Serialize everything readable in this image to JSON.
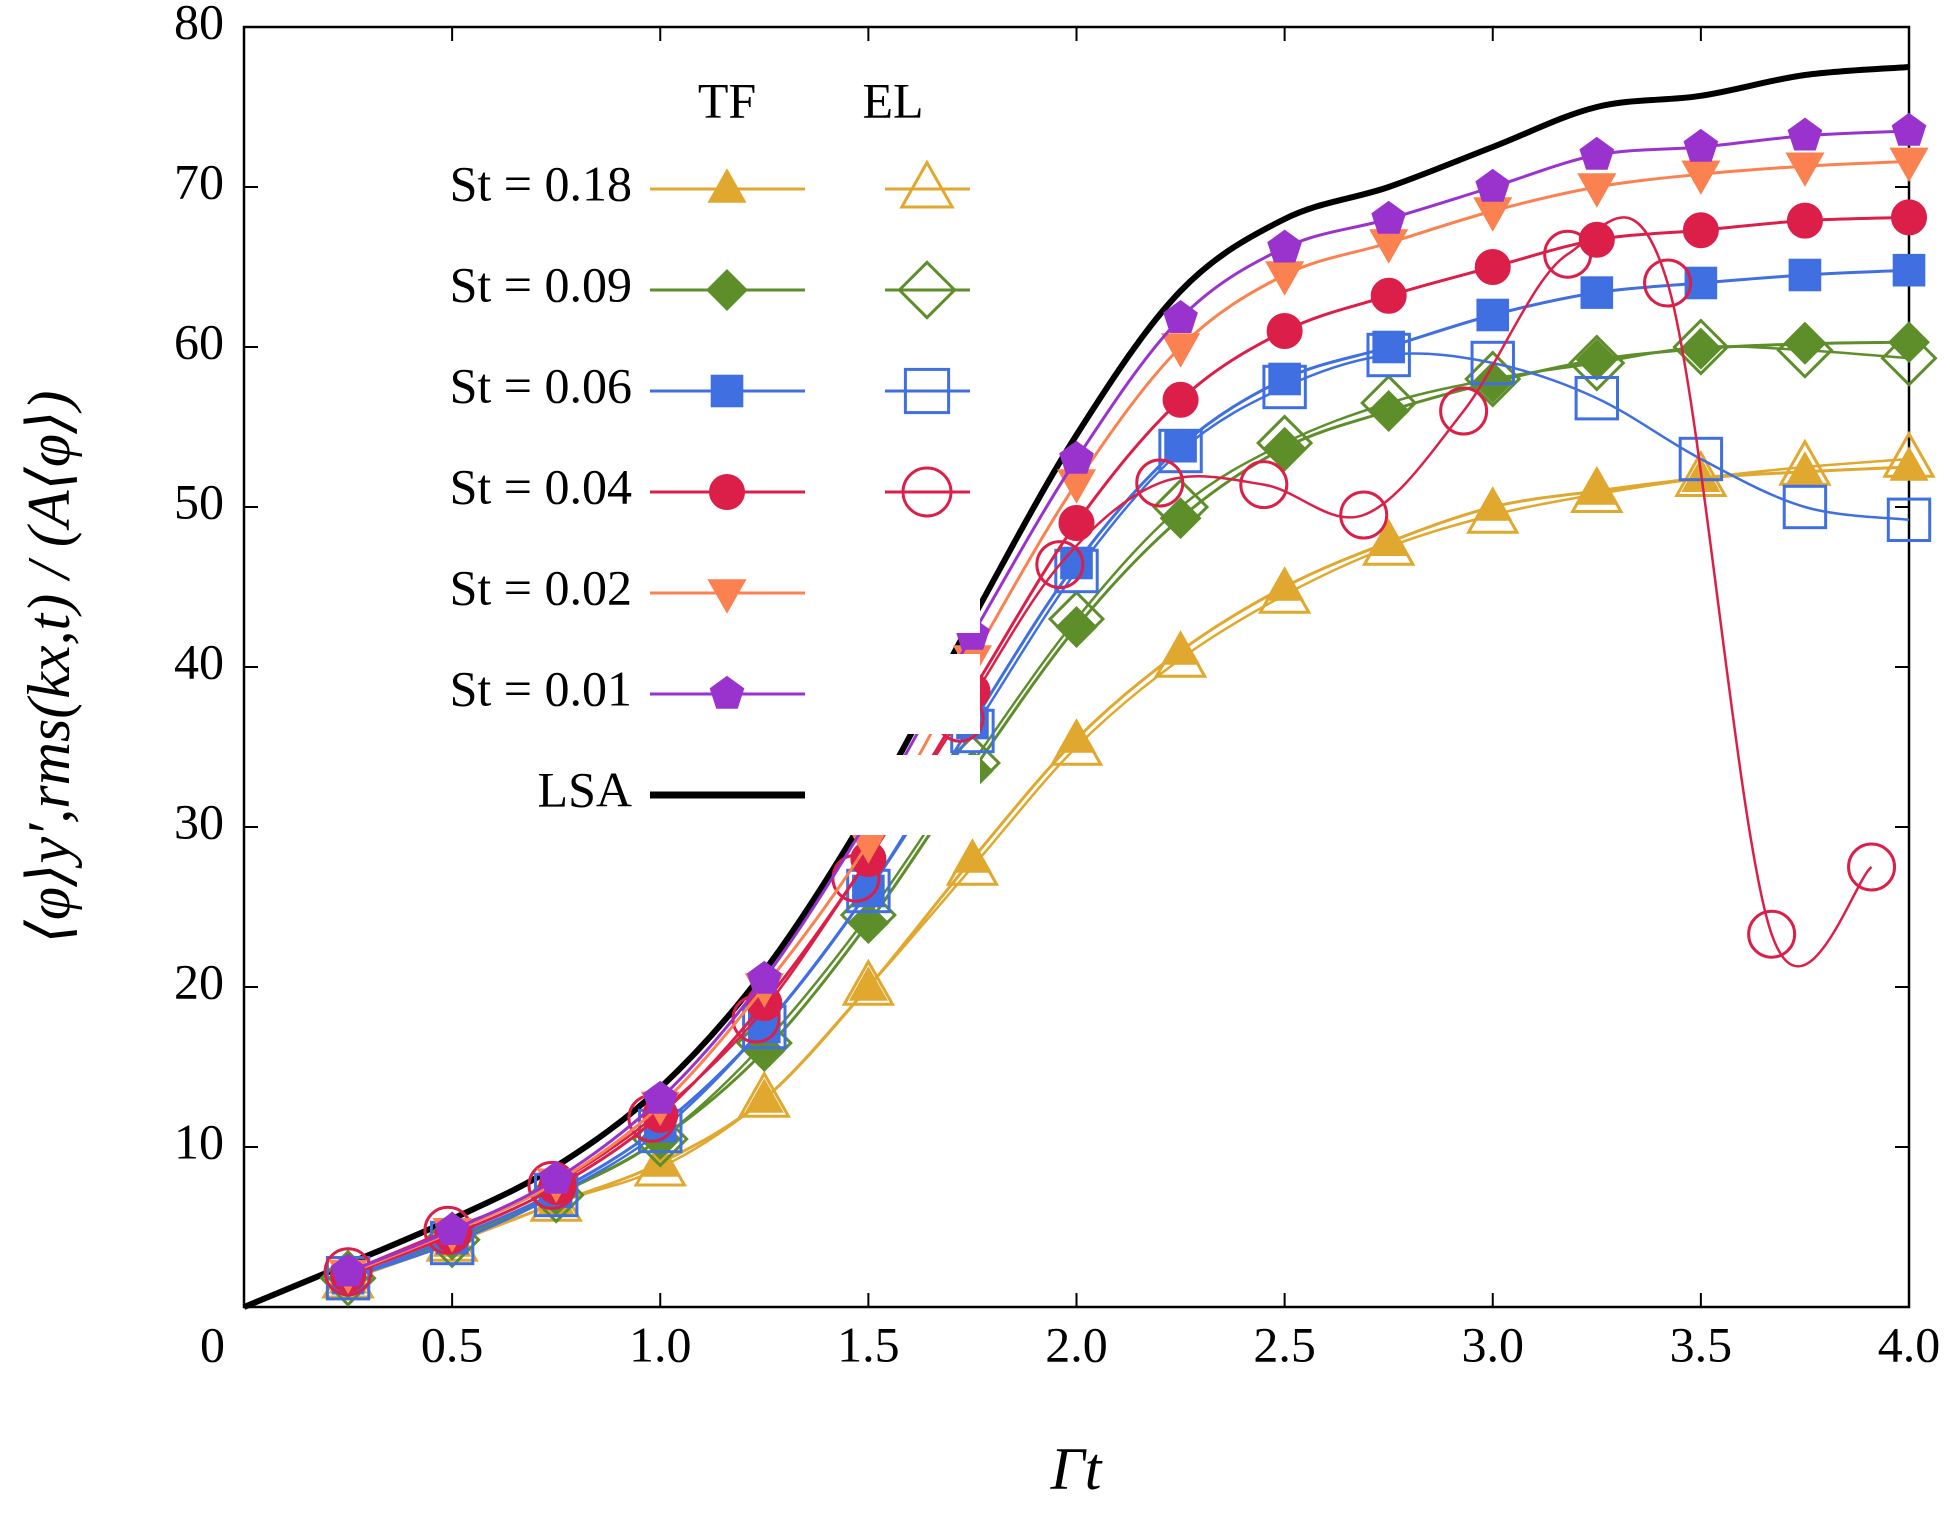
{
  "chart_data": {
    "type": "line",
    "xlabel": "Γt",
    "ylabel": "⟨φ⟩y′,rms(kx,t) / (A⟨φ⟩)",
    "xlim": [
      0,
      4
    ],
    "ylim": [
      0,
      80
    ],
    "xticks": [
      0,
      0.5,
      {
        "value": 1,
        "label": "1.0"
      },
      1.5,
      {
        "value": 2,
        "label": "2.0"
      },
      2.5,
      {
        "value": 3,
        "label": "3.0"
      },
      3.5,
      {
        "value": 4,
        "label": "4.0"
      }
    ],
    "yticks": [
      10,
      20,
      30,
      40,
      50,
      60,
      70,
      80
    ],
    "legend_columns": [
      "TF",
      "EL"
    ],
    "x": [
      0.25,
      0.5,
      0.75,
      1.0,
      1.25,
      1.5,
      1.75,
      2.0,
      2.25,
      2.5,
      2.75,
      3.0,
      3.25,
      3.5,
      3.75,
      4.0
    ],
    "series": [
      {
        "name": "St = 0.18",
        "color": "#e0a82e",
        "marker": "triangle",
        "values": [
          1.7,
          4,
          6.5,
          9,
          13,
          20,
          28,
          35.5,
          41,
          45,
          47.8,
          50,
          51,
          51.8,
          52.2,
          52.5
        ],
        "el_values": [
          1.7,
          4,
          6.5,
          8.7,
          13,
          20,
          27.5,
          35,
          40.5,
          44.5,
          47.5,
          49.5,
          50.8,
          51.8,
          52.5,
          53
        ]
      },
      {
        "name": "St = 0.09",
        "color": "#5e8e2a",
        "marker": "diamond",
        "values": [
          1.8,
          4.2,
          7,
          10.5,
          16,
          24,
          33.5,
          42.5,
          49.3,
          53.7,
          56,
          57.8,
          59.2,
          59.9,
          60.2,
          60.3
        ],
        "el_values": [
          1.8,
          4.2,
          7,
          10.5,
          16.5,
          24.5,
          34,
          43,
          50,
          54,
          56.5,
          58,
          59,
          60,
          59.8,
          59.3
        ]
      },
      {
        "name": "St = 0.06",
        "color": "#3f6fe0",
        "marker": "square",
        "values": [
          1.8,
          4.3,
          7.2,
          11.3,
          17.5,
          26,
          36.5,
          46.5,
          53.8,
          58,
          60,
          62,
          63.4,
          64,
          64.5,
          64.8
        ],
        "el_values": [
          1.8,
          4,
          7,
          11,
          17.5,
          26,
          36,
          46,
          53.5,
          57.5,
          59.5,
          59,
          56.8,
          53,
          50,
          49.2
        ]
      },
      {
        "name": "St = 0.04",
        "color": "#dc1f48",
        "marker": "circle",
        "values": [
          2,
          4.5,
          7.5,
          12,
          19,
          28,
          38.5,
          49,
          56.7,
          61,
          63.2,
          65,
          66.7,
          67.3,
          67.9,
          68.1
        ],
        "el_x": [
          0.25,
          0.49,
          0.74,
          0.98,
          1.23,
          1.47,
          1.72,
          1.96,
          2.2,
          2.45,
          2.69,
          2.93,
          3.18,
          3.42,
          3.67,
          3.91
        ],
        "el_values": [
          2.2,
          4.8,
          7.6,
          11.8,
          18,
          26.8,
          36.8,
          46.4,
          51.5,
          51.4,
          49.5,
          56,
          65.8,
          64,
          23.3,
          27.5
        ]
      },
      {
        "name": "St = 0.02",
        "color": "#fb8250",
        "marker": "down",
        "values": [
          2.1,
          4.7,
          7.8,
          12.6,
          20,
          29,
          40.5,
          51.5,
          60,
          64.5,
          66.5,
          68.5,
          70,
          70.8,
          71.3,
          71.6
        ]
      },
      {
        "name": "St = 0.01",
        "color": "#9a32cd",
        "marker": "pentagon",
        "values": [
          2.2,
          4.8,
          8,
          13,
          20.5,
          30.5,
          42,
          53,
          61.8,
          66.2,
          68,
          70,
          72,
          72.5,
          73.2,
          73.5
        ]
      },
      {
        "name": "LSA",
        "color": "#000000",
        "marker": "none",
        "x": [
          0,
          0.25,
          0.5,
          0.75,
          1.0,
          1.25,
          1.5,
          1.75,
          2.0,
          2.25,
          2.5,
          2.75,
          3.0,
          3.25,
          3.5,
          3.75,
          4.0
        ],
        "values": [
          0,
          2.7,
          5.5,
          8.8,
          13.7,
          21,
          31,
          43,
          54.5,
          63.5,
          68,
          70,
          72.5,
          75,
          75.7,
          77,
          77.5
        ]
      }
    ]
  }
}
